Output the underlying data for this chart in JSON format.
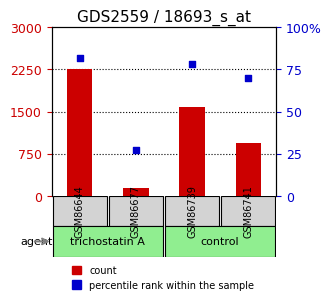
{
  "title": "GDS2559 / 18693_s_at",
  "samples": [
    "GSM86644",
    "GSM86677",
    "GSM86739",
    "GSM86741"
  ],
  "counts": [
    2250,
    150,
    1575,
    950
  ],
  "percentiles": [
    82,
    27,
    78,
    70
  ],
  "groups": [
    "trichostatin A",
    "trichostatin A",
    "control",
    "control"
  ],
  "group_colors": {
    "trichostatin A": "#90EE90",
    "control": "#90EE90"
  },
  "bar_color": "#CC0000",
  "dot_color": "#0000CC",
  "left_ylim": [
    0,
    3000
  ],
  "right_ylim": [
    0,
    100
  ],
  "left_yticks": [
    0,
    750,
    1500,
    2250,
    3000
  ],
  "right_yticks": [
    0,
    25,
    50,
    75,
    100
  ],
  "left_yticklabels": [
    "0",
    "750",
    "1500",
    "2250",
    "3000"
  ],
  "right_yticklabels": [
    "0",
    "25",
    "50",
    "75",
    "100%"
  ],
  "xlabel": "agent",
  "sample_box_color": "#D3D3D3",
  "title_fontsize": 11,
  "tick_fontsize": 9,
  "legend_count_label": "count",
  "legend_pct_label": "percentile rank within the sample"
}
